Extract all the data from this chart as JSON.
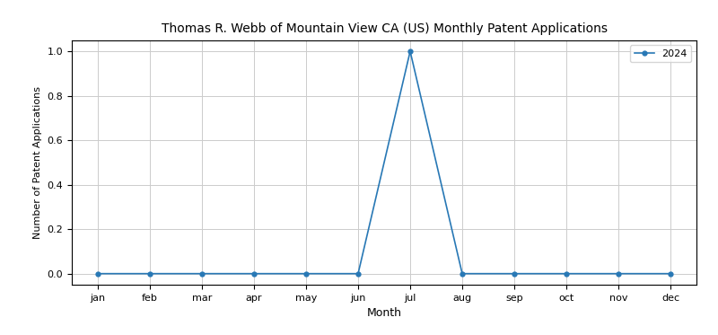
{
  "title": "Thomas R. Webb of Mountain View CA (US) Monthly Patent Applications",
  "xlabel": "Month",
  "ylabel": "Number of Patent Applications",
  "months": [
    "jan",
    "feb",
    "mar",
    "apr",
    "may",
    "jun",
    "jul",
    "aug",
    "sep",
    "oct",
    "nov",
    "dec"
  ],
  "values": [
    0,
    0,
    0,
    0,
    0,
    0,
    1,
    0,
    0,
    0,
    0,
    0
  ],
  "line_color": "#2878b5",
  "marker": "o",
  "legend_label": "2024",
  "ylim": [
    -0.05,
    1.05
  ],
  "grid": true,
  "figsize": [
    8.0,
    3.73
  ],
  "dpi": 100,
  "title_fontsize": 10,
  "xlabel_fontsize": 9,
  "ylabel_fontsize": 8,
  "tick_fontsize": 8,
  "legend_fontsize": 8
}
